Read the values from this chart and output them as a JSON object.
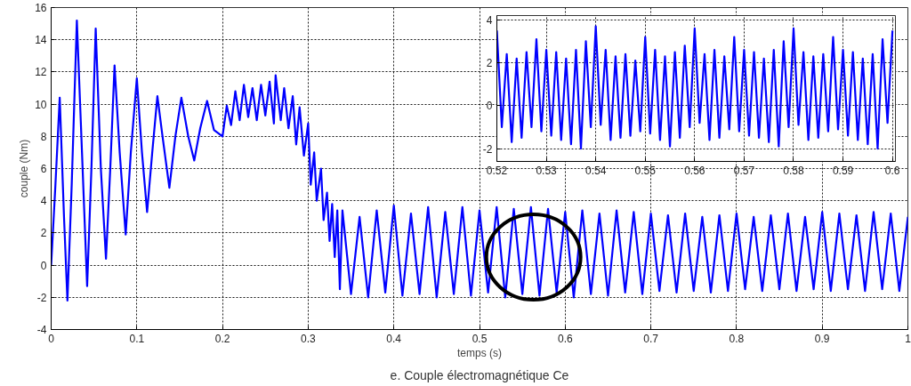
{
  "chart_data": [
    {
      "type": "line",
      "xlabel": "temps (s)",
      "ylabel": "couple (Nm)",
      "annotations": [
        "e. Couple électromagnétique Ce"
      ],
      "xlim": [
        0,
        1
      ],
      "ylim": [
        -4,
        16
      ],
      "xticks": [
        0,
        0.1,
        0.2,
        0.3,
        0.4,
        0.5,
        0.6,
        0.7,
        0.8,
        0.9,
        1
      ],
      "yticks": [
        -4,
        -2,
        0,
        2,
        4,
        6,
        8,
        10,
        12,
        14,
        16
      ],
      "grid": true,
      "series": [
        {
          "color": "#0000ff",
          "x": [
            0,
            0.005,
            0.01,
            0.015,
            0.019,
            0.024,
            0.03,
            0.036,
            0.042,
            0.047,
            0.052,
            0.058,
            0.064,
            0.069,
            0.074,
            0.08,
            0.087,
            0.093,
            0.1,
            0.106,
            0.112,
            0.118,
            0.124,
            0.13,
            0.138,
            0.145,
            0.152,
            0.16,
            0.167,
            0.174,
            0.182,
            0.19,
            0.2,
            0.205,
            0.21,
            0.215,
            0.22,
            0.225,
            0.23,
            0.235,
            0.24,
            0.245,
            0.25,
            0.255,
            0.26,
            0.262,
            0.268,
            0.272,
            0.277,
            0.282,
            0.286,
            0.29,
            0.295,
            0.3,
            0.303,
            0.307,
            0.31,
            0.315,
            0.318,
            0.322,
            0.325,
            0.328,
            0.331,
            0.334,
            0.337,
            0.34,
            0.35,
            0.36,
            0.37,
            0.38,
            0.39,
            0.4,
            0.41,
            0.42,
            0.43,
            0.44,
            0.45,
            0.46,
            0.47,
            0.48,
            0.49,
            0.5,
            0.51,
            0.52,
            0.53,
            0.54,
            0.55,
            0.56,
            0.57,
            0.58,
            0.59,
            0.6,
            0.61,
            0.62,
            0.63,
            0.64,
            0.65,
            0.66,
            0.67,
            0.68,
            0.69,
            0.7,
            0.71,
            0.72,
            0.73,
            0.74,
            0.75,
            0.76,
            0.77,
            0.78,
            0.79,
            0.8,
            0.81,
            0.82,
            0.83,
            0.84,
            0.85,
            0.86,
            0.87,
            0.88,
            0.89,
            0.9,
            0.91,
            0.92,
            0.93,
            0.94,
            0.95,
            0.96,
            0.97,
            0.98,
            0.99,
            1.0
          ],
          "values": [
            0,
            5,
            10.4,
            3,
            -2.2,
            5,
            15.2,
            7,
            -1.3,
            6,
            14.7,
            6,
            0.4,
            6,
            12.4,
            7,
            1.9,
            7,
            11.6,
            7,
            3.3,
            7,
            10.5,
            8,
            4.8,
            8,
            10.4,
            8,
            6.5,
            8.5,
            10.2,
            8.4,
            8,
            9.9,
            8.7,
            10.8,
            9,
            11.2,
            9.2,
            11,
            9,
            11.2,
            9.3,
            11.4,
            8.8,
            11.8,
            9,
            11,
            8.5,
            10.5,
            7.5,
            9.8,
            6.8,
            8.8,
            5,
            7,
            4,
            6,
            2.8,
            4.5,
            1.5,
            3.8,
            0.5,
            3.4,
            -1.5,
            3.4,
            -1.8,
            3.0,
            -2.0,
            3.4,
            -1.7,
            3.7,
            -1.9,
            3.2,
            -1.8,
            3.6,
            -2.0,
            3.3,
            -1.8,
            3.6,
            -1.9,
            3.4,
            -1.7,
            3.6,
            -2.0,
            3.5,
            -1.8,
            3.6,
            -1.9,
            3.5,
            -1.7,
            3.3,
            -2.0,
            3.4,
            -1.8,
            3.2,
            -1.9,
            3.4,
            -1.7,
            3.3,
            -1.8,
            3.2,
            -1.6,
            3.1,
            -1.7,
            3.2,
            -1.6,
            3.0,
            -1.7,
            3.1,
            -1.6,
            3.2,
            -1.5,
            3.0,
            -1.6,
            3.1,
            -1.5,
            3.2,
            -1.6,
            3.0,
            -1.5,
            3.3,
            -1.6,
            3.2,
            -1.5,
            3.1,
            -1.6,
            3.3,
            -1.5,
            3.2,
            -1.6,
            3.0
          ]
        }
      ]
    },
    {
      "type": "line",
      "xlim": [
        0.52,
        0.6006
      ],
      "ylim": [
        -2.6,
        4.2
      ],
      "xticks": [
        0.52,
        0.53,
        0.54,
        0.55,
        0.56,
        0.57,
        0.58,
        0.59,
        0.6
      ],
      "yticks": [
        -2,
        0,
        2,
        4
      ],
      "grid": true,
      "series": [
        {
          "color": "#0000ff",
          "x": [
            0.52,
            0.521,
            0.522,
            0.523,
            0.524,
            0.525,
            0.526,
            0.527,
            0.528,
            0.529,
            0.53,
            0.531,
            0.532,
            0.533,
            0.534,
            0.535,
            0.536,
            0.537,
            0.538,
            0.539,
            0.54,
            0.541,
            0.542,
            0.543,
            0.544,
            0.545,
            0.546,
            0.547,
            0.548,
            0.549,
            0.55,
            0.551,
            0.552,
            0.553,
            0.554,
            0.555,
            0.556,
            0.557,
            0.558,
            0.559,
            0.56,
            0.561,
            0.562,
            0.563,
            0.564,
            0.565,
            0.566,
            0.567,
            0.568,
            0.569,
            0.57,
            0.571,
            0.572,
            0.573,
            0.574,
            0.575,
            0.576,
            0.577,
            0.578,
            0.579,
            0.58,
            0.581,
            0.582,
            0.583,
            0.584,
            0.585,
            0.586,
            0.587,
            0.588,
            0.589,
            0.59,
            0.591,
            0.592,
            0.593,
            0.594,
            0.595,
            0.596,
            0.597,
            0.598,
            0.599,
            0.6
          ],
          "values": [
            3.5,
            -1.0,
            2.4,
            -1.7,
            2.2,
            -1.5,
            2.5,
            -1.0,
            3.1,
            -1.2,
            2.6,
            -1.4,
            2.5,
            -1.6,
            2.2,
            -1.8,
            2.6,
            -2.0,
            3.0,
            -1.0,
            3.7,
            -0.9,
            2.6,
            -1.6,
            2.3,
            -1.5,
            2.4,
            -1.4,
            2.1,
            -1.2,
            3.2,
            -1.3,
            2.6,
            -1.6,
            2.3,
            -1.9,
            2.5,
            -1.5,
            2.8,
            -1.0,
            3.6,
            -0.8,
            2.4,
            -1.6,
            2.6,
            -1.5,
            2.3,
            -1.1,
            3.2,
            -1.2,
            2.6,
            -1.4,
            2.5,
            -1.5,
            2.2,
            -1.7,
            2.6,
            -1.9,
            3.0,
            -1.0,
            3.6,
            -0.9,
            2.5,
            -1.6,
            2.3,
            -1.5,
            2.4,
            -1.2,
            3.2,
            -1.1,
            2.6,
            -1.4,
            2.5,
            -1.6,
            2.2,
            -1.8,
            2.4,
            -2.0,
            3.1,
            -0.8,
            3.5
          ]
        }
      ]
    }
  ]
}
